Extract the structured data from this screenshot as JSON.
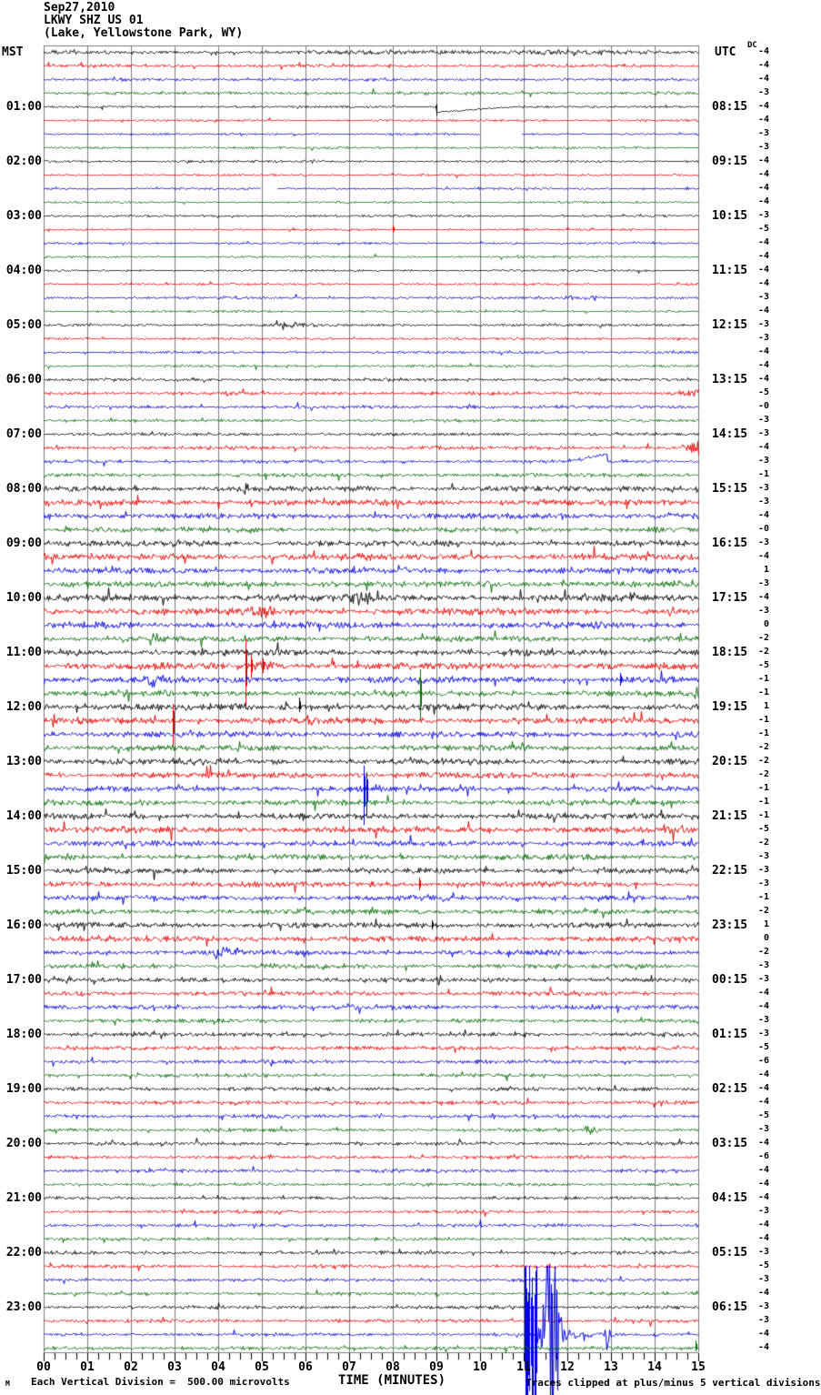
{
  "header": {
    "date": "Sep27,2010",
    "station": "LKWY SHZ US 01",
    "location": "(Lake, Yellowstone Park, WY)"
  },
  "axis": {
    "left_title": "MST",
    "right_title": "UTC",
    "dc_title": "DC",
    "x_title": "TIME (MINUTES)",
    "footer_left": "Each Vertical Division =  500.00 microvolts",
    "footer_right": "Traces clipped at plus/minus 5 vertical divisions",
    "corner_mark": "M"
  },
  "chart_data": {
    "type": "line",
    "kind": "helicorder_seismogram",
    "station": "LKWY SHZ US 01",
    "location": "Lake, Yellowstone Park, WY",
    "date": "Sep27,2010",
    "minutes_per_row": 15,
    "rows_total": 96,
    "x_range_minutes": [
      0,
      15
    ],
    "x_tick_labels": [
      "00",
      "01",
      "02",
      "03",
      "04",
      "05",
      "06",
      "07",
      "08",
      "09",
      "10",
      "11",
      "12",
      "13",
      "14",
      "15"
    ],
    "volts_per_division": "500.00 microvolts",
    "clip_limit": "plus/minus 5 vertical divisions",
    "row_color_cycle": [
      "black",
      "red",
      "blue",
      "green"
    ],
    "palette": {
      "black": "#000000",
      "red": "#e60000",
      "blue": "#0000e0",
      "green": "#006e00",
      "grid": "#7b7b7b"
    },
    "mst_hour_labels": [
      "01:00",
      "02:00",
      "03:00",
      "04:00",
      "05:00",
      "06:00",
      "07:00",
      "08:00",
      "09:00",
      "10:00",
      "11:00",
      "12:00",
      "13:00",
      "14:00",
      "15:00",
      "16:00",
      "17:00",
      "18:00",
      "19:00",
      "20:00",
      "21:00",
      "22:00",
      "23:00"
    ],
    "utc_hour_labels": [
      "08:15",
      "09:15",
      "10:15",
      "11:15",
      "12:15",
      "13:15",
      "14:15",
      "15:15",
      "16:15",
      "17:15",
      "18:15",
      "19:15",
      "20:15",
      "21:15",
      "22:15",
      "23:15",
      "00:15",
      "01:15",
      "02:15",
      "03:15",
      "04:15",
      "05:15",
      "06:15"
    ],
    "dc_offsets": [
      "-4",
      "-4",
      "-4",
      "-3",
      "-4",
      "-4",
      "-3",
      "-3",
      "-4",
      "-4",
      "-4",
      "-4",
      "-3",
      "-5",
      "-4",
      "-4",
      "-4",
      "-4",
      "-3",
      "-4",
      "-3",
      "-3",
      "-4",
      "-4",
      "-4",
      "-5",
      "-0",
      "-3",
      "-3",
      "-4",
      "-3",
      "-1",
      "-3",
      "-3",
      "-4",
      "-0",
      "-3",
      "-4",
      "1",
      "-3",
      "-4",
      "-3",
      "0",
      "-2",
      "-2",
      "-5",
      "-1",
      "-1",
      "1",
      "-1",
      "-1",
      "-2",
      "-2",
      "-2",
      "-1",
      "-1",
      "-1",
      "-5",
      "-2",
      "-3",
      "-3",
      "-3",
      "-1",
      "-2",
      "1",
      "0",
      "-2",
      "-3",
      "-3",
      "-4",
      "-4",
      "-3",
      "-3",
      "-5",
      "-6",
      "-4",
      "-4",
      "-4",
      "-5",
      "-3",
      "-4",
      "-6",
      "-4",
      "-4",
      "-4",
      "-3",
      "-4",
      "-4",
      "-3",
      "-5",
      "-3",
      "-4",
      "-3",
      "-3",
      "-4",
      "-4"
    ],
    "row_noise_amp": [
      1.3,
      1.2,
      1.0,
      1.2,
      0.8,
      0.8,
      0.7,
      0.8,
      0.8,
      0.7,
      0.7,
      0.7,
      0.7,
      0.7,
      0.7,
      0.7,
      0.7,
      0.8,
      0.9,
      0.8,
      1.0,
      0.9,
      0.9,
      0.9,
      1.2,
      1.3,
      1.2,
      1.1,
      1.2,
      1.4,
      1.2,
      1.5,
      2.2,
      2.4,
      2.2,
      2.2,
      2.4,
      2.6,
      2.4,
      2.4,
      2.6,
      2.8,
      2.6,
      2.4,
      2.6,
      2.8,
      2.6,
      2.4,
      2.6,
      2.6,
      2.4,
      2.4,
      2.4,
      2.4,
      2.2,
      2.2,
      2.4,
      2.6,
      2.2,
      2.2,
      2.2,
      2.2,
      2.0,
      2.0,
      2.2,
      2.2,
      2.0,
      1.8,
      1.8,
      1.8,
      1.8,
      1.6,
      1.6,
      1.6,
      1.5,
      1.5,
      1.5,
      1.5,
      1.4,
      1.4,
      1.4,
      1.3,
      1.3,
      1.2,
      1.2,
      1.2,
      1.2,
      1.2,
      1.3,
      1.3,
      1.2,
      1.2,
      1.3,
      1.3,
      1.2,
      1.4
    ],
    "events": [
      {
        "row": 0,
        "type": "burst",
        "min": 6.0,
        "dur": 9.0,
        "mult": 1.8
      },
      {
        "row": 4,
        "type": "step",
        "min": 9.0
      },
      {
        "row": 6,
        "type": "gap",
        "min": 10.0,
        "end": 10.95
      },
      {
        "row": 10,
        "type": "gap",
        "min": 4.97,
        "end": 5.35
      },
      {
        "row": 13,
        "type": "spike",
        "min": 8.0,
        "up": 4,
        "down": 4
      },
      {
        "row": 18,
        "type": "burst",
        "min": 11.7,
        "dur": 1.3,
        "mult": 3
      },
      {
        "row": 20,
        "type": "burst",
        "min": 5.0,
        "dur": 1.5,
        "mult": 2.5
      },
      {
        "row": 25,
        "type": "burst",
        "min": 14.2,
        "dur": 1.6,
        "mult": 3.5
      },
      {
        "row": 26,
        "type": "burst",
        "min": 9.4,
        "dur": 0.7,
        "mult": 3
      },
      {
        "row": 29,
        "type": "burst",
        "min": 14.4,
        "dur": 1.2,
        "mult": 4.5
      },
      {
        "row": 30,
        "type": "ramp",
        "min": 12.0,
        "dur": 0.9
      },
      {
        "row": 40,
        "type": "burst",
        "min": 6.9,
        "dur": 0.7,
        "mult": 2.2
      },
      {
        "row": 41,
        "type": "burst",
        "min": 4.5,
        "dur": 1.0,
        "mult": 2.0
      },
      {
        "row": 45,
        "type": "spike",
        "min": 4.63,
        "up": 30,
        "down": 45
      },
      {
        "row": 45,
        "type": "spike",
        "min": 4.76,
        "up": 12,
        "down": 14
      },
      {
        "row": 45,
        "type": "spike",
        "min": 5.02,
        "up": 8,
        "down": 8
      },
      {
        "row": 45,
        "type": "burst",
        "min": 4.6,
        "dur": 0.9,
        "mult": 1.8
      },
      {
        "row": 46,
        "type": "burst",
        "min": 2.3,
        "dur": 0.6,
        "mult": 2.5
      },
      {
        "row": 46,
        "type": "spike",
        "min": 13.2,
        "up": 7,
        "down": 7
      },
      {
        "row": 47,
        "type": "spike",
        "min": 8.62,
        "up": 26,
        "down": 30
      },
      {
        "row": 47,
        "type": "burst",
        "min": 14.8,
        "dur": 0.4,
        "mult": 2.5
      },
      {
        "row": 48,
        "type": "spike",
        "min": 5.85,
        "up": 10,
        "down": 6
      },
      {
        "row": 49,
        "type": "spike",
        "min": 2.96,
        "up": 18,
        "down": 28
      },
      {
        "row": 54,
        "type": "spike",
        "min": 7.33,
        "up": 25,
        "down": 40
      },
      {
        "row": 54,
        "type": "spike",
        "min": 7.39,
        "up": 18,
        "down": 30
      },
      {
        "row": 54,
        "type": "burst",
        "min": 7.45,
        "dur": 0.5,
        "mult": 2.0
      },
      {
        "row": 61,
        "type": "spike",
        "min": 8.6,
        "up": 7,
        "down": 7
      },
      {
        "row": 64,
        "type": "spike",
        "min": 8.9,
        "up": 5,
        "down": 5
      },
      {
        "row": 66,
        "type": "burst",
        "min": 3.6,
        "dur": 1.0,
        "mult": 2.8
      },
      {
        "row": 73,
        "type": "burst",
        "min": 5.15,
        "dur": 0.4,
        "mult": 2.8
      },
      {
        "row": 77,
        "type": "burst",
        "min": 5.35,
        "dur": 0.4,
        "mult": 2.5
      },
      {
        "row": 79,
        "type": "burst",
        "min": 12.3,
        "dur": 0.45,
        "mult": 5
      },
      {
        "row": 88,
        "type": "burst",
        "min": 8.4,
        "dur": 0.7,
        "mult": 2
      },
      {
        "row": 94,
        "type": "bigevent",
        "min": 11.02
      },
      {
        "row": 95,
        "type": "spike",
        "min": 14.93,
        "up": 8,
        "down": 4
      }
    ]
  }
}
